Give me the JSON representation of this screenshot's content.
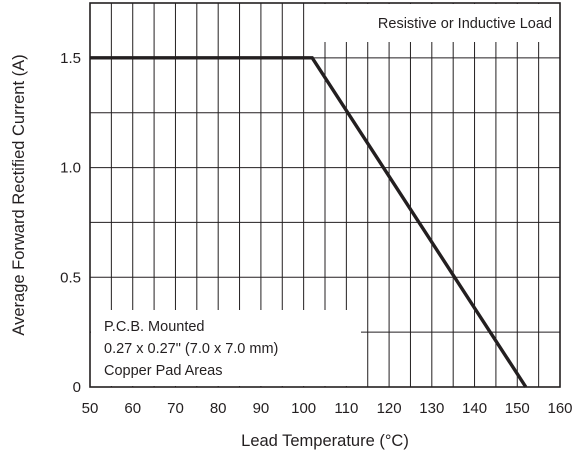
{
  "chart_data": {
    "type": "line",
    "xlabel": "Lead Temperature (°C)",
    "ylabel": "Average Forward Rectified Current (A)",
    "xlim": [
      50,
      160
    ],
    "ylim": [
      0,
      1.75
    ],
    "x_ticks": [
      50,
      60,
      70,
      80,
      90,
      100,
      110,
      120,
      130,
      140,
      150,
      160
    ],
    "x_tick_labels": [
      "50",
      "60",
      "70",
      "80",
      "90",
      "100",
      "110",
      "120",
      "130",
      "140",
      "150",
      "160"
    ],
    "y_ticks": [
      0,
      0.5,
      1.0,
      1.5
    ],
    "y_tick_labels": [
      "0",
      "0.5",
      "1.0",
      "1.5"
    ],
    "x_minor_gridlines": [
      55,
      65,
      75,
      85,
      95,
      105,
      115,
      125,
      135,
      145,
      155
    ],
    "y_minor_gridlines": [
      0.25,
      0.75,
      1.25
    ],
    "grid": true,
    "series": [
      {
        "x": [
          50,
          102,
          152
        ],
        "y": [
          1.5,
          1.5,
          0
        ]
      }
    ],
    "annotations": [
      {
        "position": "top-right",
        "lines": [
          "Resistive or Inductive Load"
        ]
      },
      {
        "position": "bottom-left",
        "lines": [
          "P.C.B. Mounted",
          "0.27 x 0.27\" (7.0 x 7.0 mm)",
          "Copper Pad Areas"
        ]
      }
    ]
  },
  "colors": {
    "ink": "#231f20",
    "background": "#ffffff"
  }
}
